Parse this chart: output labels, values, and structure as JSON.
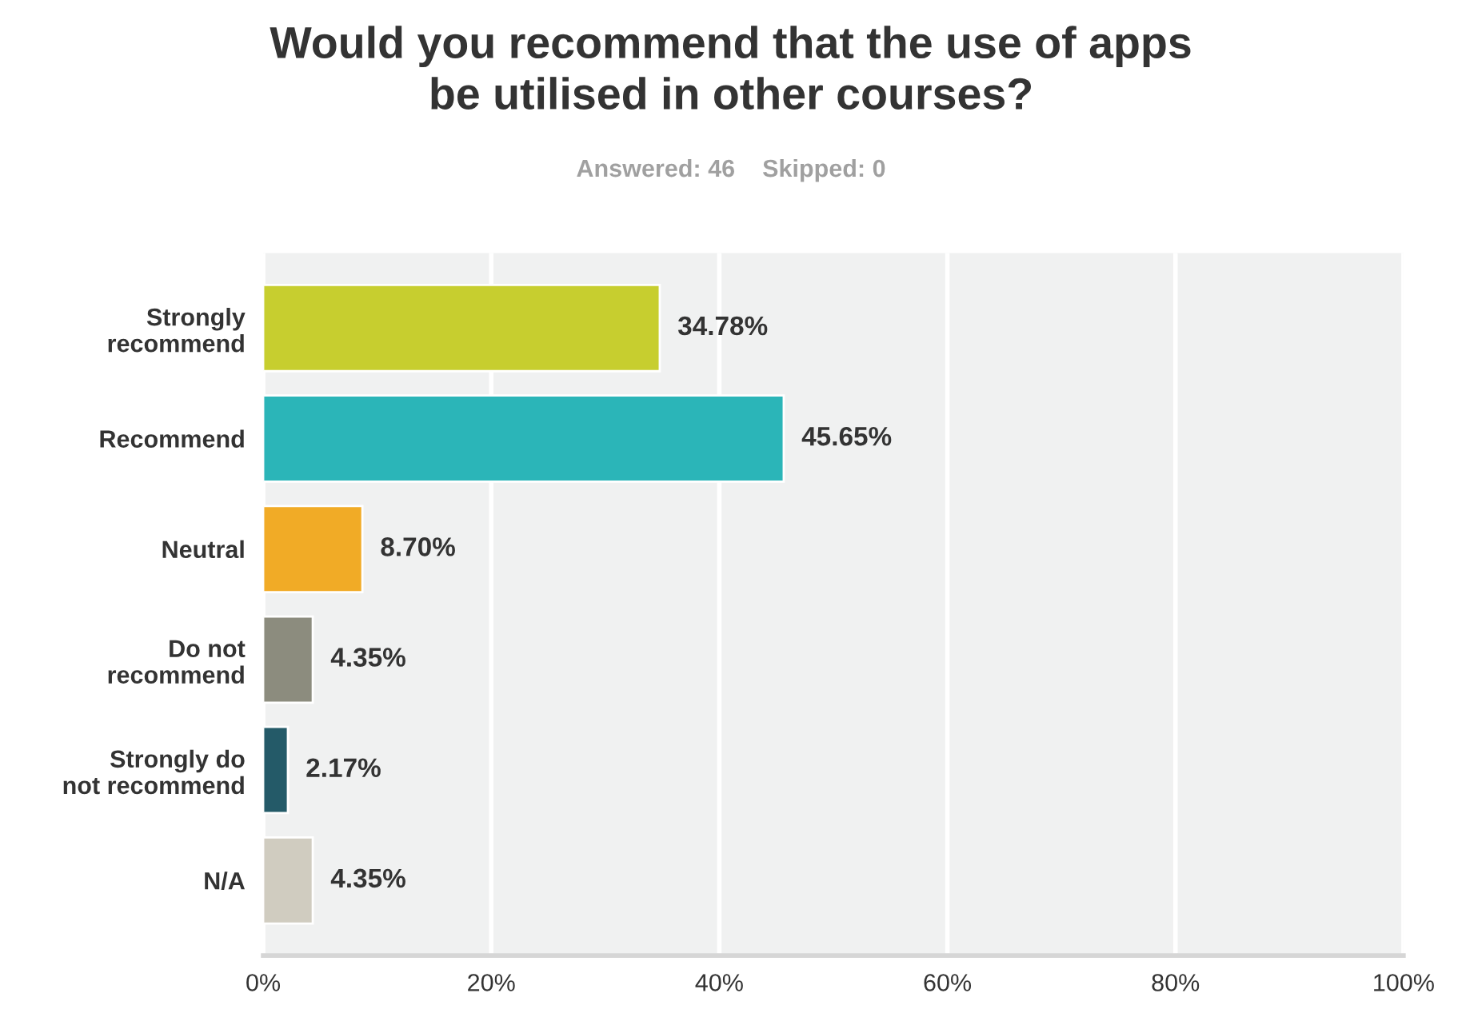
{
  "chart_data": {
    "type": "bar",
    "orientation": "horizontal",
    "title": "Would you recommend that the use of apps\nbe utilised in other courses?",
    "subtitle": "Answered: 46    Skipped: 0",
    "categories": [
      "Strongly\nrecommend",
      "Recommend",
      "Neutral",
      "Do not\nrecommend",
      "Strongly do\nnot recommend",
      "N/A"
    ],
    "values": [
      34.78,
      45.65,
      8.7,
      4.35,
      2.17,
      4.35
    ],
    "colors": [
      "#c7ce2f",
      "#2bb5b8",
      "#f1ab26",
      "#8c8c7e",
      "#245a68",
      "#d0ccc0"
    ],
    "value_labels": [
      "34.78%",
      "45.65%",
      "8.70%",
      "4.35%",
      "2.17%",
      "4.35%"
    ],
    "xlim": [
      0,
      100
    ],
    "xticks": [
      {
        "value": 0,
        "label": "0%"
      },
      {
        "value": 20,
        "label": "20%"
      },
      {
        "value": 40,
        "label": "40%"
      },
      {
        "value": 60,
        "label": "60%"
      },
      {
        "value": 80,
        "label": "80%"
      },
      {
        "value": 100,
        "label": "100%"
      }
    ],
    "grid": "x",
    "legend": false
  }
}
